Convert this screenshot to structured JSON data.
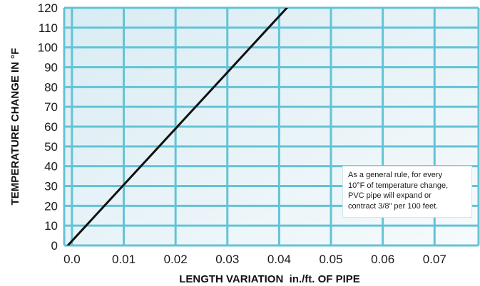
{
  "chart_data": {
    "type": "line",
    "title": "",
    "xlabel": "LENGTH VARIATION  in./ft. OF PIPE",
    "ylabel": "TEMPERATURE CHANGE IN °F",
    "xlim": [
      -0.0015,
      0.0785
    ],
    "ylim": [
      0,
      120
    ],
    "x_ticks": [
      "0.0",
      "0.01",
      "0.02",
      "0.03",
      "0.04",
      "0.05",
      "0.06",
      "0.07"
    ],
    "y_ticks": [
      "0",
      "10",
      "20",
      "30",
      "40",
      "50",
      "60",
      "70",
      "80",
      "90",
      "100",
      "110",
      "120"
    ],
    "grid": true,
    "legend": "none",
    "series": [
      {
        "x": [
          -0.0015,
          0.0422
        ],
        "y": [
          -2,
          122
        ]
      }
    ],
    "annotation": [
      "As a general rule, for every",
      "10°F of temperature change,",
      "PVC pipe will expand or",
      "contract 3/8\" per 100 feet."
    ],
    "colors": {
      "grid": "#63c3d6",
      "line": "#111111",
      "background": "#eaf4f8"
    }
  }
}
